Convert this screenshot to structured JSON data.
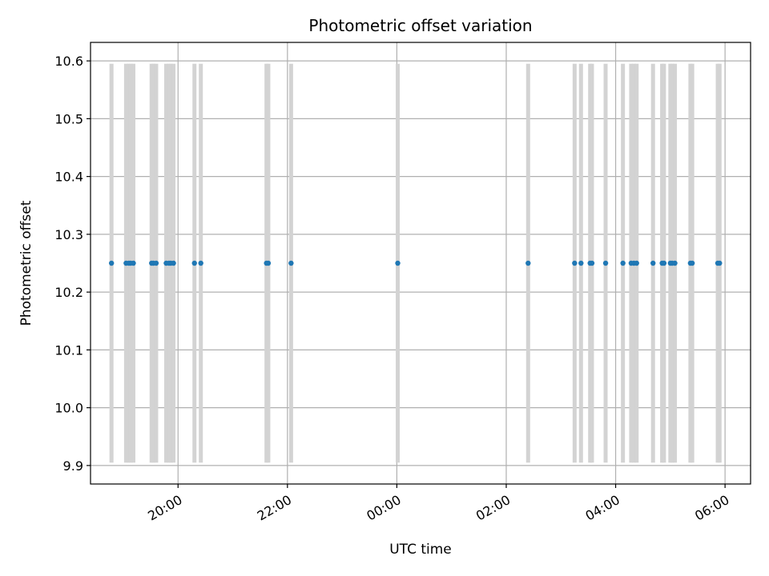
{
  "chart_data": {
    "type": "scatter",
    "title": "Photometric offset variation",
    "xlabel": "UTC time",
    "ylabel": "Photometric offset",
    "x_tick_labels": [
      "20:00",
      "22:00",
      "00:00",
      "02:00",
      "04:00",
      "06:00"
    ],
    "y_tick_labels": [
      "9.9",
      "10.0",
      "10.1",
      "10.2",
      "10.3",
      "10.4",
      "10.5",
      "10.6"
    ],
    "x_ticks": [
      "20:00",
      "22:00",
      "00:00",
      "02:00",
      "04:00",
      "06:00"
    ],
    "y_ticks": [
      9.9,
      10.0,
      10.1,
      10.2,
      10.3,
      10.4,
      10.5,
      10.6
    ],
    "xlim": [
      "18:24",
      "06:28"
    ],
    "ylim": [
      9.868,
      10.632
    ],
    "grid": true,
    "band_range": [
      9.905,
      10.595
    ],
    "band_color": "#d3d3d3",
    "point_color": "#1f77b4",
    "x": [
      "18:47",
      "19:03",
      "19:06",
      "19:08",
      "19:11",
      "19:31",
      "19:33",
      "19:36",
      "19:47",
      "19:50",
      "19:52",
      "19:55",
      "20:18",
      "20:25",
      "21:37",
      "21:39",
      "22:04",
      "00:01",
      "02:24",
      "03:15",
      "03:22",
      "03:32",
      "03:34",
      "03:49",
      "04:08",
      "04:17",
      "04:20",
      "04:23",
      "04:41",
      "04:51",
      "04:53",
      "05:00",
      "05:02",
      "05:05",
      "05:22",
      "05:24",
      "05:52",
      "05:54"
    ],
    "y": [
      10.25,
      10.25,
      10.25,
      10.25,
      10.25,
      10.25,
      10.25,
      10.25,
      10.25,
      10.25,
      10.25,
      10.25,
      10.25,
      10.25,
      10.25,
      10.25,
      10.25,
      10.25,
      10.25,
      10.25,
      10.25,
      10.25,
      10.25,
      10.25,
      10.25,
      10.25,
      10.25,
      10.25,
      10.25,
      10.25,
      10.25,
      10.25,
      10.25,
      10.25,
      10.25,
      10.25,
      10.25,
      10.25
    ]
  }
}
